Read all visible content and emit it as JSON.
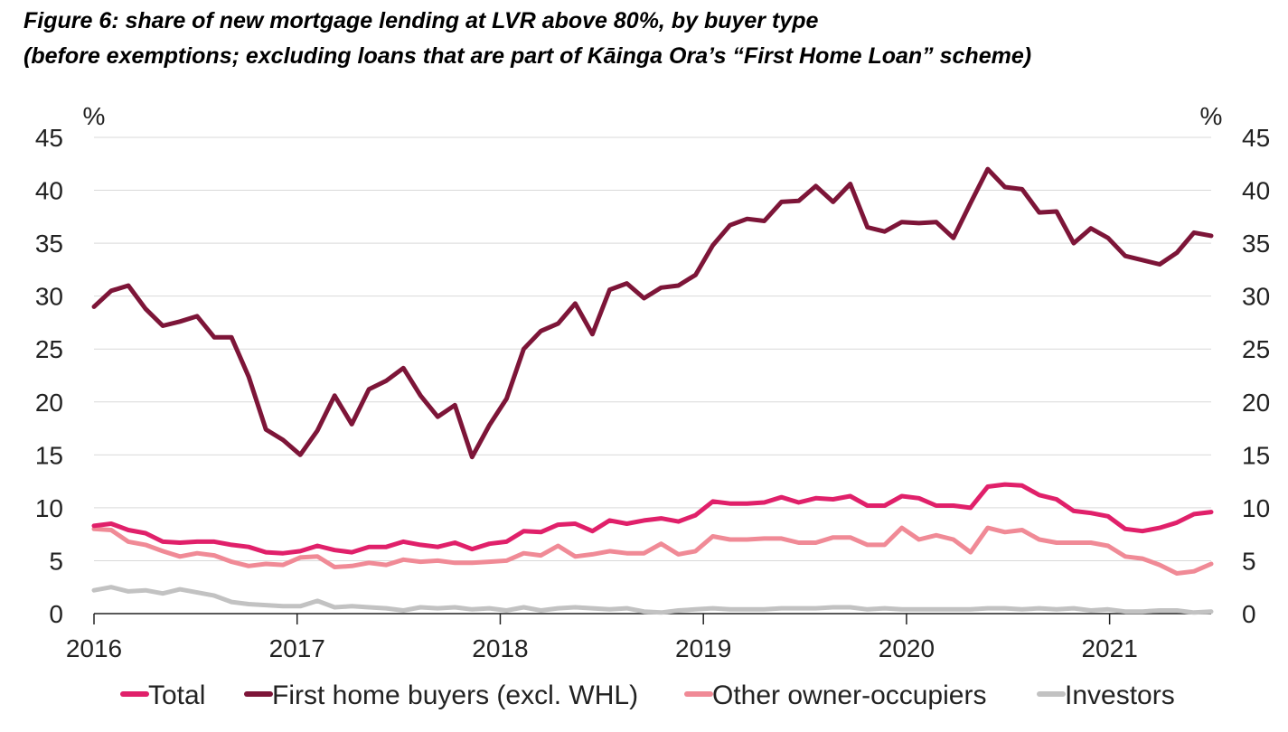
{
  "chart_data": {
    "type": "line",
    "title": "Figure 6: share of new mortgage lending at LVR above 80%, by buyer type",
    "subtitle": "(before exemptions; excluding loans that are part of Kāinga Ora’s “First Home Loan” scheme)",
    "ylabel_left": "%",
    "ylabel_right": "%",
    "ylim": [
      0,
      45
    ],
    "yticks": [
      0,
      5,
      10,
      15,
      20,
      25,
      30,
      35,
      40,
      45
    ],
    "xlim": [
      2016.0,
      2021.5
    ],
    "xticks": [
      "2016",
      "2017",
      "2018",
      "2019",
      "2020",
      "2021"
    ],
    "grid": "horizontal",
    "legend_position": "bottom",
    "series": [
      {
        "name": "Total",
        "color": "#e0206a",
        "values": [
          8.3,
          8.5,
          7.9,
          7.6,
          6.8,
          6.7,
          6.8,
          6.8,
          6.5,
          6.3,
          5.8,
          5.7,
          5.9,
          6.4,
          6.0,
          5.8,
          6.3,
          6.3,
          6.8,
          6.5,
          6.3,
          6.7,
          6.1,
          6.6,
          6.8,
          7.8,
          7.7,
          8.4,
          8.5,
          7.8,
          8.8,
          8.5,
          8.8,
          9.0,
          8.7,
          9.3,
          10.6,
          10.4,
          10.4,
          10.5,
          11.0,
          10.5,
          10.9,
          10.8,
          11.1,
          10.2,
          10.2,
          11.1,
          10.9,
          10.2,
          10.2,
          10.0,
          12.0,
          12.2,
          12.1,
          11.2,
          10.8,
          9.7,
          9.5,
          9.2,
          8.0,
          7.8,
          8.1,
          8.6,
          9.4,
          9.6
        ]
      },
      {
        "name": "First home buyers (excl. WHL)",
        "color": "#7d1538",
        "values": [
          29.0,
          30.5,
          31.0,
          28.8,
          27.2,
          27.6,
          28.1,
          26.1,
          26.1,
          22.4,
          17.4,
          16.4,
          15.0,
          17.3,
          20.6,
          17.9,
          21.2,
          22.0,
          23.2,
          20.6,
          18.6,
          19.7,
          14.8,
          17.8,
          20.3,
          25.0,
          26.7,
          27.4,
          29.3,
          26.4,
          30.6,
          31.2,
          29.8,
          30.8,
          31.0,
          32.0,
          34.8,
          36.7,
          37.3,
          37.1,
          38.9,
          39.0,
          40.4,
          38.9,
          40.6,
          36.5,
          36.1,
          37.0,
          36.9,
          37.0,
          35.5,
          38.8,
          42.0,
          40.3,
          40.1,
          37.9,
          38.0,
          35.0,
          36.4,
          35.5,
          33.8,
          33.4,
          33.0,
          34.1,
          36.0,
          35.7
        ]
      },
      {
        "name": "Other owner-occupiers",
        "color": "#f08a96",
        "values": [
          8.0,
          7.9,
          6.8,
          6.5,
          5.9,
          5.4,
          5.7,
          5.5,
          4.9,
          4.5,
          4.7,
          4.6,
          5.3,
          5.4,
          4.4,
          4.5,
          4.8,
          4.6,
          5.1,
          4.9,
          5.0,
          4.8,
          4.8,
          4.9,
          5.0,
          5.7,
          5.5,
          6.4,
          5.4,
          5.6,
          5.9,
          5.7,
          5.7,
          6.6,
          5.6,
          5.9,
          7.3,
          7.0,
          7.0,
          7.1,
          7.1,
          6.7,
          6.7,
          7.2,
          7.2,
          6.5,
          6.5,
          8.1,
          7.0,
          7.4,
          7.0,
          5.8,
          8.1,
          7.7,
          7.9,
          7.0,
          6.7,
          6.7,
          6.7,
          6.4,
          5.4,
          5.2,
          4.6,
          3.8,
          4.0,
          4.7
        ]
      },
      {
        "name": "Investors",
        "color": "#c2c2c2",
        "values": [
          2.2,
          2.5,
          2.1,
          2.2,
          1.9,
          2.3,
          2.0,
          1.7,
          1.1,
          0.9,
          0.8,
          0.7,
          0.7,
          1.2,
          0.6,
          0.7,
          0.6,
          0.5,
          0.3,
          0.6,
          0.5,
          0.6,
          0.4,
          0.5,
          0.3,
          0.6,
          0.3,
          0.5,
          0.6,
          0.5,
          0.4,
          0.5,
          0.2,
          0.1,
          0.3,
          0.4,
          0.5,
          0.4,
          0.4,
          0.4,
          0.5,
          0.5,
          0.5,
          0.6,
          0.6,
          0.4,
          0.5,
          0.4,
          0.4,
          0.4,
          0.4,
          0.4,
          0.5,
          0.5,
          0.4,
          0.5,
          0.4,
          0.5,
          0.3,
          0.4,
          0.2,
          0.2,
          0.3,
          0.3,
          0.1,
          0.2
        ]
      }
    ]
  }
}
